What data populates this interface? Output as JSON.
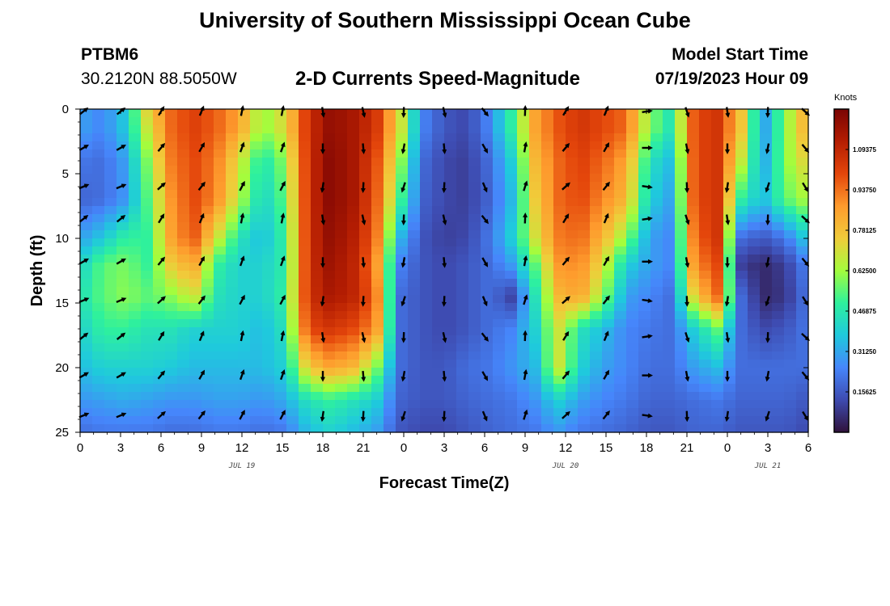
{
  "header": {
    "title": "University of Southern Mississippi Ocean Cube",
    "station_id": "PTBM6",
    "station_location": "30.2120N  88.5050W",
    "subtitle": "2-D Currents Speed-Magnitude",
    "model_start_label": "Model Start Time",
    "model_start_value": "07/19/2023 Hour 09",
    "bottom_title": "University of Southern Mississippi Ocean Cube"
  },
  "colors": {
    "scale": [
      "#30123b",
      "#3e4bb0",
      "#4686fb",
      "#1fc9dd",
      "#2ef19d",
      "#a3fd3d",
      "#f0cc3a",
      "#fe9b2d",
      "#e4460b",
      "#b41d02",
      "#7a0403"
    ]
  },
  "chart_data": {
    "type": "heatmap",
    "title": "2-D Currents Speed-Magnitude",
    "xlabel": "Forecast Time(Z)",
    "ylabel": "Depth (ft)",
    "x_hours": [
      0,
      54
    ],
    "x_tick_labels": [
      "0",
      "3",
      "6",
      "9",
      "12",
      "15",
      "18",
      "21",
      "0",
      "3",
      "6",
      "9",
      "12",
      "15",
      "18",
      "21",
      "0",
      "3",
      "6"
    ],
    "date_labels": [
      {
        "label": "JUL 19",
        "hour": 12
      },
      {
        "label": "JUL 20",
        "hour": 36
      },
      {
        "label": "JUL 21",
        "hour": 51
      }
    ],
    "ylim": [
      0,
      25
    ],
    "y_ticks": [
      0,
      5,
      10,
      15,
      20,
      25
    ],
    "colorbar": {
      "unit": "Knots",
      "range": [
        0,
        1.25
      ],
      "labels": [
        {
          "text": "1.09375",
          "value": 1.09375
        },
        {
          "text": "0.93750",
          "value": 0.9375
        },
        {
          "text": "0.78125",
          "value": 0.78125
        },
        {
          "text": "0.62500",
          "value": 0.625
        },
        {
          "text": "0.46875",
          "value": 0.46875
        },
        {
          "text": "0.31250",
          "value": 0.3125
        },
        {
          "text": "0.15625",
          "value": 0.15625
        }
      ]
    },
    "depths": [
      0,
      1.5,
      4,
      7,
      10,
      12,
      14.5,
      17,
      20,
      22.5,
      25
    ],
    "speed_grid": [
      [
        0.3,
        0.25,
        0.38,
        0.75,
        0.95,
        1.02,
        0.96,
        0.85,
        0.6,
        0.72,
        1.05,
        1.2,
        1.15,
        1.05,
        0.75,
        0.25,
        0.15,
        0.12,
        0.25,
        0.5,
        0.85,
        0.98,
        1.05,
        1.0,
        0.95,
        0.6,
        0.45,
        1.0,
        1.05,
        0.8,
        0.28,
        0.6,
        0.85
      ],
      [
        0.3,
        0.25,
        0.38,
        0.7,
        0.95,
        1.02,
        0.96,
        0.85,
        0.6,
        0.72,
        1.05,
        1.2,
        1.15,
        1.05,
        0.75,
        0.25,
        0.15,
        0.12,
        0.25,
        0.5,
        0.85,
        0.98,
        1.05,
        1.0,
        0.95,
        0.6,
        0.45,
        1.0,
        1.05,
        0.8,
        0.28,
        0.6,
        0.85
      ],
      [
        0.22,
        0.2,
        0.3,
        0.6,
        0.92,
        1.0,
        0.92,
        0.7,
        0.45,
        0.6,
        1.05,
        1.22,
        1.15,
        1.0,
        0.65,
        0.2,
        0.12,
        0.1,
        0.2,
        0.4,
        0.8,
        0.95,
        1.02,
        0.95,
        0.85,
        0.45,
        0.35,
        1.0,
        1.05,
        0.7,
        0.3,
        0.6,
        0.75
      ],
      [
        0.18,
        0.2,
        0.28,
        0.55,
        0.88,
        1.0,
        0.9,
        0.65,
        0.4,
        0.55,
        1.05,
        1.22,
        1.15,
        0.98,
        0.55,
        0.18,
        0.12,
        0.1,
        0.18,
        0.35,
        0.75,
        0.95,
        1.0,
        0.9,
        0.8,
        0.4,
        0.3,
        1.0,
        1.05,
        0.5,
        0.35,
        0.55,
        0.65
      ],
      [
        0.3,
        0.38,
        0.5,
        0.5,
        0.85,
        0.98,
        0.7,
        0.45,
        0.35,
        0.5,
        1.05,
        1.2,
        1.12,
        0.95,
        0.35,
        0.15,
        0.1,
        0.12,
        0.22,
        0.4,
        0.7,
        0.92,
        0.95,
        0.8,
        0.6,
        0.3,
        0.25,
        0.95,
        1.05,
        0.2,
        0.15,
        0.22,
        0.4
      ],
      [
        0.4,
        0.55,
        0.58,
        0.5,
        0.75,
        0.85,
        0.5,
        0.4,
        0.4,
        0.48,
        1.05,
        1.18,
        1.1,
        0.9,
        0.25,
        0.15,
        0.12,
        0.15,
        0.2,
        0.3,
        0.55,
        0.88,
        0.9,
        0.7,
        0.4,
        0.3,
        0.25,
        0.9,
        1.0,
        0.1,
        0.05,
        0.1,
        0.25
      ],
      [
        0.45,
        0.55,
        0.6,
        0.55,
        0.6,
        0.7,
        0.45,
        0.4,
        0.4,
        0.5,
        1.05,
        1.15,
        1.1,
        0.95,
        0.2,
        0.15,
        0.12,
        0.15,
        0.2,
        0.1,
        0.45,
        0.8,
        0.85,
        0.6,
        0.3,
        0.25,
        0.2,
        0.75,
        0.95,
        0.2,
        0.05,
        0.08,
        0.22
      ],
      [
        0.4,
        0.5,
        0.5,
        0.45,
        0.45,
        0.4,
        0.4,
        0.4,
        0.35,
        0.45,
        1.0,
        1.05,
        1.0,
        0.9,
        0.2,
        0.15,
        0.12,
        0.15,
        0.2,
        0.25,
        0.4,
        0.7,
        0.45,
        0.35,
        0.25,
        0.22,
        0.2,
        0.4,
        0.55,
        0.2,
        0.12,
        0.15,
        0.22
      ],
      [
        0.35,
        0.4,
        0.4,
        0.4,
        0.38,
        0.35,
        0.35,
        0.35,
        0.35,
        0.4,
        0.75,
        0.85,
        0.8,
        0.6,
        0.2,
        0.15,
        0.15,
        0.2,
        0.22,
        0.28,
        0.35,
        0.7,
        0.4,
        0.3,
        0.25,
        0.2,
        0.2,
        0.3,
        0.35,
        0.2,
        0.2,
        0.2,
        0.2
      ],
      [
        0.28,
        0.3,
        0.32,
        0.3,
        0.28,
        0.28,
        0.3,
        0.3,
        0.28,
        0.32,
        0.45,
        0.5,
        0.45,
        0.4,
        0.18,
        0.15,
        0.15,
        0.18,
        0.2,
        0.22,
        0.28,
        0.4,
        0.3,
        0.25,
        0.22,
        0.18,
        0.18,
        0.2,
        0.22,
        0.18,
        0.18,
        0.18,
        0.15
      ],
      [
        0.2,
        0.22,
        0.22,
        0.22,
        0.2,
        0.2,
        0.22,
        0.22,
        0.2,
        0.22,
        0.35,
        0.4,
        0.35,
        0.3,
        0.15,
        0.12,
        0.12,
        0.15,
        0.18,
        0.2,
        0.22,
        0.28,
        0.22,
        0.2,
        0.18,
        0.15,
        0.15,
        0.18,
        0.18,
        0.15,
        0.15,
        0.15,
        0.12
      ]
    ],
    "arrow_depths": [
      0,
      3,
      6,
      8.5,
      11.8,
      14.8,
      17.6,
      20.6,
      23.7
    ],
    "arrow_hours": [
      0,
      3,
      6,
      9,
      12,
      15,
      18,
      21,
      24,
      27,
      30,
      33,
      36,
      39,
      42,
      45,
      48,
      51,
      54
    ],
    "arrow_dir_by_column": [
      60,
      60,
      40,
      30,
      20,
      20,
      180,
      175,
      190,
      175,
      150,
      10,
      40,
      30,
      90,
      170,
      180,
      190,
      140
    ]
  }
}
